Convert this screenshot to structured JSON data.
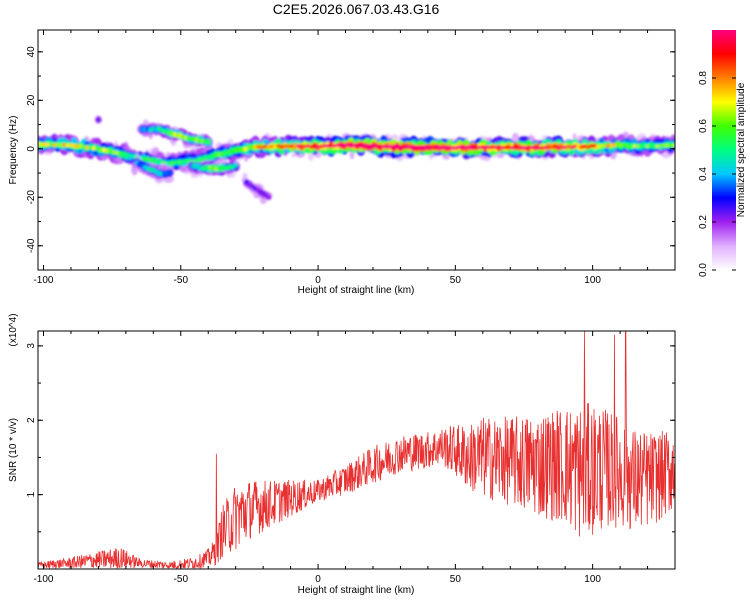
{
  "title": "C2E5.2026.067.03.43.G16",
  "chart_data": [
    {
      "type": "heatmap",
      "name": "spectrogram",
      "xlabel": "Height of straight line (km)",
      "ylabel": "Frequency (Hz)",
      "xlim": [
        -102,
        130
      ],
      "ylim": [
        -50,
        49
      ],
      "xticks": [
        -100,
        -50,
        0,
        50,
        100
      ],
      "yticks": [
        -40,
        -20,
        0,
        20,
        40
      ],
      "xtick_labels": [
        "-100",
        "-50",
        "0",
        "50",
        "100"
      ],
      "ytick_labels": [
        "-40",
        "-20",
        "0",
        "20",
        "40"
      ],
      "colorbar": {
        "label": "Normalized spectral amplitude",
        "range": [
          0,
          1
        ],
        "ticks": [
          0.0,
          0.2,
          0.4,
          0.6,
          0.8
        ],
        "tick_labels": [
          "0.0",
          "0.2",
          "0.4",
          "0.6",
          "0.8"
        ],
        "colors": [
          "#ffffff",
          "#e0b0ff",
          "#a020f0",
          "#0000ff",
          "#00c8ff",
          "#00ff80",
          "#40ff00",
          "#ffff00",
          "#ff8000",
          "#ff0000",
          "#ff0080"
        ]
      },
      "features": [
        {
          "name": "main trace",
          "x": [
            -102,
            -90,
            -80,
            -72,
            -65,
            -55,
            -45,
            -35,
            -25,
            -15,
            -5,
            0,
            10,
            20,
            40,
            60,
            80,
            100,
            110,
            120,
            130
          ],
          "y": [
            2,
            1.5,
            0,
            -2,
            -4,
            -6,
            -5,
            -2,
            0.5,
            1,
            1,
            1,
            1.5,
            1,
            0.5,
            0.5,
            0.5,
            1,
            1.5,
            1,
            1.5
          ],
          "intensity": [
            0.55,
            0.6,
            0.55,
            0.5,
            0.45,
            0.45,
            0.5,
            0.5,
            0.6,
            0.7,
            0.8,
            0.85,
            0.9,
            0.95,
            0.95,
            0.9,
            0.85,
            0.7,
            0.55,
            0.5,
            0.5
          ]
        },
        {
          "name": "upper branch",
          "x": [
            -64,
            -58,
            -52,
            -46,
            -40
          ],
          "y": [
            8,
            8,
            6,
            4,
            3
          ],
          "intensity": [
            0.35,
            0.45,
            0.6,
            0.6,
            0.55
          ]
        },
        {
          "name": "lower branch",
          "x": [
            -46,
            -42,
            -38,
            -34,
            -30
          ],
          "y": [
            -7,
            -8,
            -8,
            -8,
            -7
          ],
          "intensity": [
            0.4,
            0.5,
            0.6,
            0.55,
            0.4
          ]
        },
        {
          "name": "descending streak",
          "x": [
            -26,
            -22,
            -18
          ],
          "y": [
            -14,
            -17,
            -20
          ],
          "intensity": [
            0.3,
            0.3,
            0.3
          ]
        },
        {
          "name": "isolated blob",
          "x": [
            -80
          ],
          "y": [
            12
          ],
          "intensity": [
            0.3
          ]
        },
        {
          "name": "left lower streak",
          "x": [
            -66,
            -62,
            -58,
            -54
          ],
          "y": [
            -6,
            -8,
            -10,
            -10
          ],
          "intensity": [
            0.35,
            0.4,
            0.45,
            0.35
          ]
        }
      ]
    },
    {
      "type": "line",
      "name": "snr",
      "xlabel": "Height of straight line (km)",
      "ylabel": "SNR (10 * v/v)",
      "y_multiplier": "(x10^4)",
      "xlim": [
        -102,
        130
      ],
      "ylim": [
        0,
        3.2
      ],
      "xticks": [
        -100,
        -50,
        0,
        50,
        100
      ],
      "yticks": [
        1,
        2,
        3
      ],
      "xtick_labels": [
        "-100",
        "-50",
        "0",
        "50",
        "100"
      ],
      "ytick_labels": [
        "1",
        "2",
        "3"
      ],
      "series": [
        {
          "name": "SNR",
          "color": "#e83030",
          "envelope_x": [
            -102,
            -90,
            -80,
            -72,
            -65,
            -55,
            -45,
            -40,
            -37,
            -35,
            -30,
            -25,
            -20,
            -15,
            -10,
            -5,
            0,
            10,
            20,
            30,
            40,
            45,
            50,
            55,
            60,
            70,
            80,
            90,
            95,
            100,
            105,
            110,
            115,
            120,
            125,
            130
          ],
          "envelope_mean": [
            0.05,
            0.08,
            0.12,
            0.15,
            0.08,
            0.05,
            0.08,
            0.15,
            0.25,
            0.5,
            0.7,
            0.8,
            0.85,
            0.9,
            0.95,
            1.0,
            1.05,
            1.2,
            1.4,
            1.55,
            1.6,
            1.65,
            1.6,
            1.5,
            1.5,
            1.45,
            1.4,
            1.4,
            1.3,
            1.35,
            1.35,
            1.3,
            1.2,
            1.2,
            1.25,
            1.35
          ],
          "envelope_amplitude": [
            0.04,
            0.08,
            0.12,
            0.15,
            0.06,
            0.05,
            0.08,
            0.12,
            0.2,
            0.35,
            0.45,
            0.4,
            0.35,
            0.3,
            0.25,
            0.2,
            0.15,
            0.2,
            0.25,
            0.25,
            0.25,
            0.25,
            0.35,
            0.45,
            0.55,
            0.6,
            0.7,
            0.8,
            0.9,
            0.9,
            0.8,
            0.75,
            0.7,
            0.65,
            0.6,
            0.55
          ],
          "peaks": [
            {
              "x": 97,
              "y": 3.2
            },
            {
              "x": 112,
              "y": 3.2
            },
            {
              "x": 108,
              "y": 3.15
            },
            {
              "x": -37,
              "y": 1.55
            }
          ]
        }
      ]
    }
  ]
}
